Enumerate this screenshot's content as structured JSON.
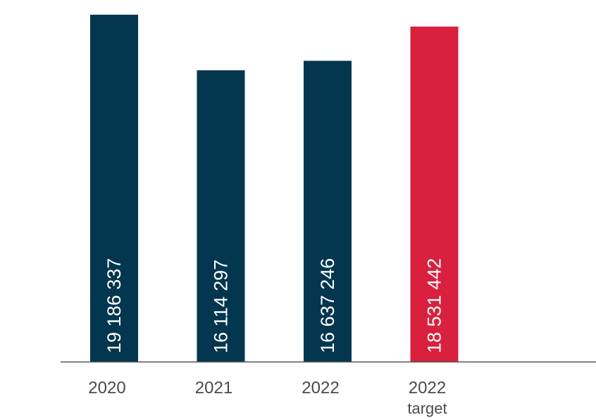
{
  "chart_data": {
    "type": "bar",
    "categories": [
      {
        "line1": "2020",
        "line2": ""
      },
      {
        "line1": "2021",
        "line2": ""
      },
      {
        "line1": "2022",
        "line2": ""
      },
      {
        "line1": "2022",
        "line2": "target"
      }
    ],
    "values": [
      19186337,
      16114297,
      16637246,
      18531442
    ],
    "value_labels": [
      "19 186 337",
      "16 114 297",
      "16 637 246",
      "18 531 442"
    ],
    "bar_colors": [
      "#03364f",
      "#03364f",
      "#03364f",
      "#d9203e"
    ],
    "axis_color": "#555555",
    "ylim": [
      0,
      20000000
    ],
    "title": "",
    "xlabel": "",
    "ylabel": "",
    "grid": false,
    "legend": "none"
  }
}
